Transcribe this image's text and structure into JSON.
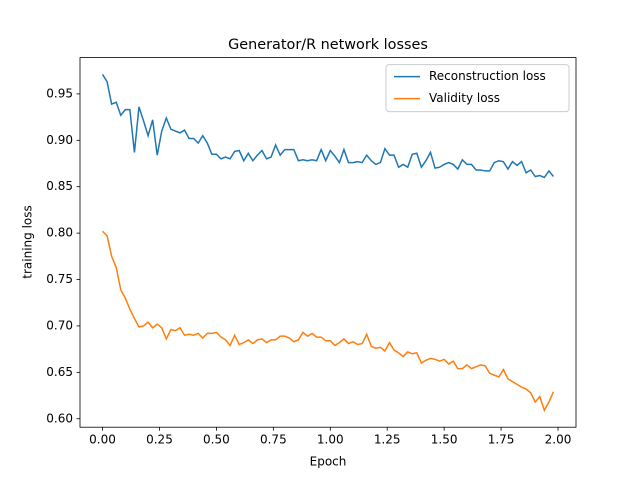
{
  "chart_data": {
    "type": "line",
    "title": "Generator/R network losses",
    "x_label": "Epoch",
    "y_label": "training loss",
    "x": [
      0,
      0.02,
      0.04,
      0.06,
      0.08,
      0.1,
      0.12,
      0.14,
      0.16,
      0.18,
      0.2,
      0.22,
      0.24,
      0.26,
      0.28,
      0.3,
      0.32,
      0.34,
      0.36,
      0.38,
      0.4,
      0.42,
      0.44,
      0.46,
      0.48,
      0.5,
      0.52,
      0.54,
      0.56,
      0.58,
      0.6,
      0.62,
      0.64,
      0.66,
      0.68,
      0.7,
      0.72,
      0.74,
      0.76,
      0.78,
      0.8,
      0.82,
      0.84,
      0.86,
      0.88,
      0.9,
      0.92,
      0.94,
      0.96,
      0.98,
      1.0,
      1.02,
      1.04,
      1.06,
      1.08,
      1.1,
      1.12,
      1.14,
      1.16,
      1.18,
      1.2,
      1.22,
      1.24,
      1.26,
      1.28,
      1.3,
      1.32,
      1.34,
      1.36,
      1.38,
      1.4,
      1.42,
      1.44,
      1.46,
      1.48,
      1.5,
      1.52,
      1.54,
      1.56,
      1.58,
      1.6,
      1.62,
      1.64,
      1.66,
      1.68,
      1.7,
      1.72,
      1.74,
      1.76,
      1.78,
      1.8,
      1.82,
      1.84,
      1.86,
      1.88,
      1.9,
      1.92,
      1.94,
      1.96,
      1.98
    ],
    "series": [
      {
        "name": "Reconstruction loss",
        "color": "#1f77b4",
        "values": [
          0.971,
          0.963,
          0.939,
          0.941,
          0.927,
          0.933,
          0.933,
          0.887,
          0.936,
          0.921,
          0.905,
          0.922,
          0.884,
          0.91,
          0.924,
          0.912,
          0.91,
          0.908,
          0.911,
          0.902,
          0.902,
          0.897,
          0.905,
          0.897,
          0.885,
          0.885,
          0.88,
          0.882,
          0.88,
          0.888,
          0.889,
          0.878,
          0.886,
          0.878,
          0.884,
          0.889,
          0.88,
          0.882,
          0.895,
          0.884,
          0.89,
          0.89,
          0.89,
          0.878,
          0.879,
          0.878,
          0.879,
          0.878,
          0.89,
          0.878,
          0.889,
          0.883,
          0.876,
          0.89,
          0.876,
          0.876,
          0.877,
          0.876,
          0.884,
          0.878,
          0.874,
          0.876,
          0.891,
          0.884,
          0.884,
          0.871,
          0.874,
          0.871,
          0.885,
          0.886,
          0.871,
          0.878,
          0.887,
          0.87,
          0.871,
          0.874,
          0.876,
          0.874,
          0.869,
          0.879,
          0.874,
          0.874,
          0.868,
          0.868,
          0.867,
          0.867,
          0.876,
          0.878,
          0.877,
          0.869,
          0.877,
          0.873,
          0.877,
          0.865,
          0.868,
          0.861,
          0.862,
          0.86,
          0.867,
          0.861
        ]
      },
      {
        "name": "Validity loss",
        "color": "#ff7f0e",
        "values": [
          0.802,
          0.797,
          0.775,
          0.763,
          0.739,
          0.73,
          0.718,
          0.708,
          0.699,
          0.7,
          0.704,
          0.698,
          0.702,
          0.698,
          0.686,
          0.696,
          0.695,
          0.698,
          0.69,
          0.691,
          0.69,
          0.692,
          0.687,
          0.692,
          0.692,
          0.693,
          0.688,
          0.685,
          0.679,
          0.69,
          0.68,
          0.682,
          0.685,
          0.681,
          0.685,
          0.686,
          0.682,
          0.685,
          0.685,
          0.689,
          0.689,
          0.687,
          0.683,
          0.685,
          0.693,
          0.689,
          0.692,
          0.688,
          0.688,
          0.684,
          0.684,
          0.679,
          0.682,
          0.686,
          0.681,
          0.683,
          0.68,
          0.681,
          0.691,
          0.678,
          0.676,
          0.677,
          0.673,
          0.682,
          0.674,
          0.671,
          0.667,
          0.672,
          0.67,
          0.671,
          0.66,
          0.663,
          0.665,
          0.664,
          0.662,
          0.664,
          0.659,
          0.662,
          0.654,
          0.654,
          0.658,
          0.654,
          0.656,
          0.658,
          0.657,
          0.649,
          0.647,
          0.645,
          0.653,
          0.643,
          0.64,
          0.637,
          0.634,
          0.632,
          0.628,
          0.618,
          0.624,
          0.609,
          0.618,
          0.629
        ]
      }
    ],
    "xlim": [
      -0.099,
      2.079
    ],
    "ylim": [
      0.5909,
      0.9891
    ],
    "xticks": [
      {
        "value": 0,
        "label": "0.00"
      },
      0.25,
      {
        "value": 0.5,
        "label": "0.50"
      },
      0.75,
      {
        "value": 1,
        "label": "1.00"
      },
      1.25,
      {
        "value": 1.5,
        "label": "1.50"
      },
      1.75,
      {
        "value": 2,
        "label": "2.00"
      }
    ],
    "yticks": [
      {
        "value": 0.6,
        "label": "0.60"
      },
      0.65,
      {
        "value": 0.7,
        "label": "0.70"
      },
      0.75,
      {
        "value": 0.8,
        "label": "0.80"
      },
      0.85,
      {
        "value": 0.9,
        "label": "0.90"
      },
      0.95
    ],
    "legend": "upper right",
    "grid": false
  }
}
